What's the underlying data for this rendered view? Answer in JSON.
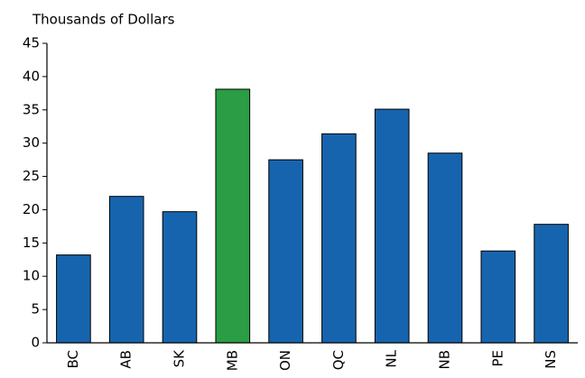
{
  "chart_data": {
    "type": "bar",
    "title": "Thousands of Dollars",
    "categories": [
      "BC",
      "AB",
      "SK",
      "MB",
      "ON",
      "QC",
      "NL",
      "NB",
      "PE",
      "NS"
    ],
    "values": [
      13.2,
      22.0,
      19.7,
      38.1,
      27.5,
      31.4,
      35.1,
      28.5,
      13.8,
      17.8
    ],
    "colors": [
      "#1764ae",
      "#1764ae",
      "#1764ae",
      "#2a9d45",
      "#1764ae",
      "#1764ae",
      "#1764ae",
      "#1764ae",
      "#1764ae",
      "#1764ae"
    ],
    "ylim": [
      0,
      45
    ],
    "yticks": [
      0,
      5,
      10,
      15,
      20,
      25,
      30,
      35,
      40,
      45
    ],
    "grid": false
  }
}
